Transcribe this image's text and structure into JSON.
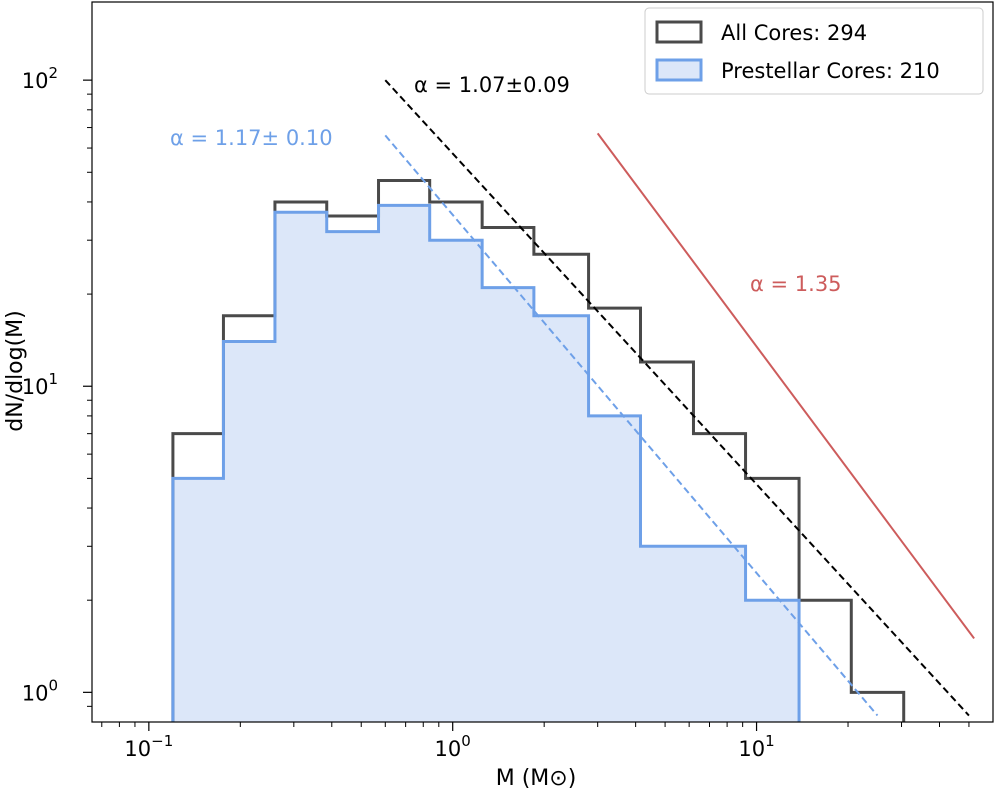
{
  "chart_data": {
    "type": "histogram",
    "x_scale": "log",
    "y_scale": "log",
    "xlabel": "M (M⊙)",
    "ylabel": "dN/dlog(M)",
    "xlim": [
      0.065,
      60
    ],
    "ylim": [
      0.8,
      180
    ],
    "x_ticks": [
      {
        "value": 0.1,
        "base": "10",
        "exp": "−1"
      },
      {
        "value": 1,
        "base": "10",
        "exp": "0"
      },
      {
        "value": 10,
        "base": "10",
        "exp": "1"
      }
    ],
    "y_ticks": [
      {
        "value": 1,
        "base": "10",
        "exp": "0"
      },
      {
        "value": 10,
        "base": "10",
        "exp": "1"
      },
      {
        "value": 100,
        "base": "10",
        "exp": "2"
      }
    ],
    "legend_position": "top-right",
    "series": [
      {
        "name": "All Cores: 294",
        "color": "#4a4a4a",
        "fill": "none",
        "bin_edges": [
          0.12,
          0.176,
          0.26,
          0.385,
          0.57,
          0.84,
          1.25,
          1.85,
          2.8,
          4.15,
          6.2,
          9.2,
          13.8,
          20.5,
          30.5
        ],
        "values": [
          7,
          17,
          40,
          36,
          47,
          40,
          33,
          27,
          18,
          12,
          7,
          5,
          2,
          1
        ]
      },
      {
        "name": "Prestellar Cores: 210",
        "color": "#6ea0e8",
        "fill": "#dce7f9",
        "bin_edges": [
          0.12,
          0.176,
          0.26,
          0.385,
          0.57,
          0.84,
          1.25,
          1.85,
          2.8,
          4.15,
          6.2,
          9.2,
          13.8
        ],
        "values": [
          5,
          14,
          37,
          32,
          39,
          30,
          21,
          17,
          8,
          3,
          3,
          2
        ]
      }
    ],
    "fits": [
      {
        "label": "α = 1.07±0.09",
        "color": "#000000",
        "dashed": true,
        "x": [
          0.6,
          50
        ],
        "y": [
          100,
          0.84
        ]
      },
      {
        "label": "α = 1.17± 0.10",
        "color": "#6ea0e8",
        "dashed": true,
        "x": [
          0.6,
          25
        ],
        "y": [
          66,
          0.84
        ]
      },
      {
        "label": "α = 1.35",
        "color": "#cd5c5c",
        "dashed": false,
        "x": [
          3,
          52
        ],
        "y": [
          67,
          1.5
        ]
      }
    ]
  }
}
